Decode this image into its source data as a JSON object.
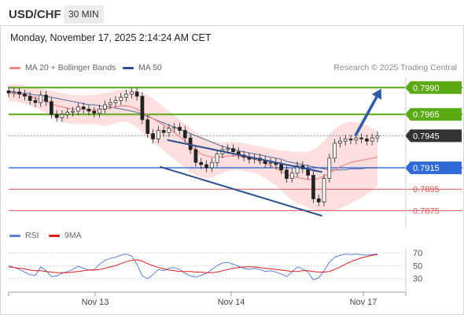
{
  "header": {
    "symbol": "USD/CHF",
    "timeframe": "30 MIN",
    "datetime": "Monday, November 17, 2025 2:14:24 AM CET"
  },
  "legend": {
    "ma20_label": "MA 20 + Bollinger Bands",
    "ma50_label": "MA 50",
    "research": "Research © 2025 Trading Central"
  },
  "rsi_legend": {
    "rsi_label": "RSI",
    "ma_label": "9MA"
  },
  "colors": {
    "ma20": "#f08a86",
    "ma50": "#2b4f8f",
    "bollinger_fill": "#fbd9d8",
    "resistance": "#5aaa14",
    "pivot": "#2f6ad8",
    "support": "#e05555",
    "arrow": "#2f5aa8",
    "current": "#333333",
    "rsi": "#5b7fd6",
    "rsi_ma": "#e01b1b"
  },
  "chart_data": {
    "type": "line",
    "symbol": "USD/CHF",
    "x_ticks": [
      "Nov 13",
      "Nov 14",
      "Nov 17"
    ],
    "ylim": [
      0.7862,
      0.8002
    ],
    "current_price": 0.7945,
    "levels": [
      {
        "value": 0.799,
        "label": "0.7990",
        "kind": "resistance"
      },
      {
        "value": 0.7965,
        "label": "0.7965",
        "kind": "resistance"
      },
      {
        "value": 0.7945,
        "label": "0.7945",
        "kind": "current"
      },
      {
        "value": 0.7915,
        "label": "0.7915",
        "kind": "pivot"
      },
      {
        "value": 0.7895,
        "label": "0.7895",
        "kind": "support"
      },
      {
        "value": 0.7875,
        "label": "0.7875",
        "kind": "support"
      }
    ],
    "channel": {
      "upper": [
        {
          "x": 0.43,
          "y": 0.7941
        },
        {
          "x": 0.85,
          "y": 0.7911
        }
      ],
      "lower": [
        {
          "x": 0.41,
          "y": 0.7916
        },
        {
          "x": 0.85,
          "y": 0.787
        }
      ]
    },
    "arrow": {
      "from": {
        "x": 0.94,
        "y": 0.7945
      },
      "to": {
        "x": 1.01,
        "y": 0.7989
      }
    },
    "close": [
      0.7985,
      0.7986,
      0.7984,
      0.7982,
      0.7978,
      0.7976,
      0.7983,
      0.7977,
      0.7965,
      0.7962,
      0.7965,
      0.7967,
      0.7968,
      0.7972,
      0.797,
      0.7968,
      0.7966,
      0.797,
      0.7974,
      0.7976,
      0.7978,
      0.7981,
      0.7984,
      0.7986,
      0.7982,
      0.796,
      0.7947,
      0.7942,
      0.795,
      0.7948,
      0.7952,
      0.7953,
      0.795,
      0.7943,
      0.7932,
      0.792,
      0.7918,
      0.7915,
      0.792,
      0.7928,
      0.7932,
      0.7933,
      0.793,
      0.7927,
      0.7925,
      0.7923,
      0.7924,
      0.7922,
      0.7919,
      0.792,
      0.7918,
      0.7913,
      0.7905,
      0.791,
      0.7917,
      0.7914,
      0.7908,
      0.7886,
      0.7883,
      0.7905,
      0.7924,
      0.7938,
      0.794,
      0.7942,
      0.7941,
      0.7943,
      0.7942,
      0.794,
      0.7943,
      0.7945
    ],
    "ma20": [
      0.7985,
      0.7985,
      0.7984,
      0.7983,
      0.7982,
      0.798,
      0.7979,
      0.7977,
      0.7975,
      0.7973,
      0.7972,
      0.7971,
      0.797,
      0.797,
      0.797,
      0.7969,
      0.7969,
      0.7969,
      0.797,
      0.7971,
      0.7972,
      0.7973,
      0.7973,
      0.7972,
      0.797,
      0.7967,
      0.7964,
      0.7961,
      0.7958,
      0.7955,
      0.7952,
      0.7948,
      0.7944,
      0.794,
      0.7936,
      0.7932,
      0.7928,
      0.7926,
      0.7925,
      0.7925,
      0.7925,
      0.7926,
      0.7926,
      0.7926,
      0.7925,
      0.7924,
      0.7923,
      0.7921,
      0.7919,
      0.7917,
      0.7914,
      0.7912,
      0.7909,
      0.7907,
      0.7906,
      0.7905,
      0.7904,
      0.7904,
      0.7905,
      0.7907,
      0.791,
      0.7913,
      0.7916,
      0.7918,
      0.792,
      0.7921,
      0.7922,
      0.7923,
      0.7924,
      0.7925
    ],
    "bb_upper": [
      0.7993,
      0.7993,
      0.7993,
      0.7992,
      0.7991,
      0.799,
      0.7989,
      0.7988,
      0.7987,
      0.7986,
      0.7985,
      0.7984,
      0.7983,
      0.7983,
      0.7983,
      0.7983,
      0.7983,
      0.7984,
      0.7985,
      0.7986,
      0.7987,
      0.7988,
      0.7988,
      0.7988,
      0.7987,
      0.7985,
      0.7983,
      0.798,
      0.7976,
      0.7972,
      0.7968,
      0.7964,
      0.796,
      0.7956,
      0.7952,
      0.7948,
      0.7945,
      0.7942,
      0.794,
      0.7939,
      0.7939,
      0.7939,
      0.7939,
      0.7939,
      0.7938,
      0.7937,
      0.7936,
      0.7935,
      0.7934,
      0.7933,
      0.7932,
      0.7931,
      0.7931,
      0.793,
      0.793,
      0.793,
      0.793,
      0.7932,
      0.7935,
      0.794,
      0.7946,
      0.7951,
      0.7955,
      0.7957,
      0.7958,
      0.7958,
      0.7957,
      0.7955,
      0.7952,
      0.7949
    ],
    "bb_lower": [
      0.7977,
      0.7977,
      0.7976,
      0.7975,
      0.7973,
      0.7971,
      0.7969,
      0.7966,
      0.7963,
      0.796,
      0.7958,
      0.7957,
      0.7956,
      0.7956,
      0.7956,
      0.7956,
      0.7956,
      0.7955,
      0.7954,
      0.7955,
      0.7957,
      0.7958,
      0.7958,
      0.7956,
      0.7953,
      0.7948,
      0.7943,
      0.7939,
      0.7935,
      0.7931,
      0.7927,
      0.7923,
      0.7919,
      0.7915,
      0.7911,
      0.7908,
      0.7906,
      0.7905,
      0.7906,
      0.7908,
      0.791,
      0.7912,
      0.7913,
      0.7913,
      0.7912,
      0.7911,
      0.791,
      0.7908,
      0.7905,
      0.7902,
      0.7898,
      0.7894,
      0.7889,
      0.7885,
      0.7882,
      0.788,
      0.7878,
      0.7876,
      0.7875,
      0.7874,
      0.7874,
      0.7875,
      0.7877,
      0.7879,
      0.7882,
      0.7884,
      0.7887,
      0.789,
      0.7894,
      0.7898
    ],
    "ma50": [
      0.7987,
      0.7986,
      0.7985,
      0.7985,
      0.7984,
      0.7983,
      0.7983,
      0.7982,
      0.7981,
      0.798,
      0.7979,
      0.7978,
      0.7977,
      0.7976,
      0.7975,
      0.7974,
      0.7974,
      0.7973,
      0.7972,
      0.7972,
      0.7971,
      0.797,
      0.7969,
      0.7968,
      0.7967,
      0.7965,
      0.7963,
      0.7961,
      0.7959,
      0.7957,
      0.7955,
      0.7953,
      0.7951,
      0.7949,
      0.7947,
      0.7945,
      0.7943,
      0.7941,
      0.7939,
      0.7937,
      0.7935,
      0.7934,
      0.7932,
      0.7931,
      0.793,
      0.7929,
      0.7928,
      0.7927,
      0.7926,
      0.7925,
      0.7924,
      0.7923,
      0.7921,
      0.792,
      0.7919,
      0.7918,
      0.7917,
      0.7916,
      0.7915,
      0.7914,
      0.7913,
      0.7913,
      0.7913,
      0.7913,
      0.7914,
      0.7914,
      0.7914,
      0.7915,
      0.7915,
      0.7915
    ],
    "rsi": {
      "levels": [
        70,
        50,
        30
      ],
      "ylim": [
        15,
        82
      ],
      "rsi": [
        50,
        47,
        44,
        40,
        36,
        35,
        48,
        42,
        33,
        34,
        38,
        41,
        44,
        49,
        46,
        43,
        44,
        52,
        58,
        61,
        63,
        66,
        68,
        65,
        52,
        34,
        30,
        36,
        44,
        42,
        46,
        47,
        44,
        38,
        34,
        32,
        35,
        38,
        44,
        50,
        54,
        55,
        52,
        49,
        46,
        44,
        46,
        44,
        41,
        42,
        40,
        37,
        33,
        40,
        48,
        45,
        40,
        28,
        31,
        42,
        55,
        63,
        66,
        68,
        67,
        68,
        67,
        66,
        67,
        68
      ],
      "ma9": [
        48,
        47,
        46,
        45,
        43,
        42,
        42,
        41,
        40,
        39,
        39,
        39,
        40,
        41,
        42,
        43,
        43,
        44,
        46,
        48,
        50,
        53,
        56,
        58,
        59,
        57,
        53,
        50,
        47,
        45,
        43,
        42,
        41,
        41,
        41,
        40,
        40,
        39,
        39,
        40,
        42,
        44,
        46,
        47,
        48,
        48,
        48,
        47,
        46,
        45,
        44,
        43,
        42,
        41,
        41,
        42,
        42,
        41,
        40,
        40,
        41,
        44,
        48,
        52,
        56,
        59,
        62,
        64,
        66,
        67
      ]
    }
  }
}
